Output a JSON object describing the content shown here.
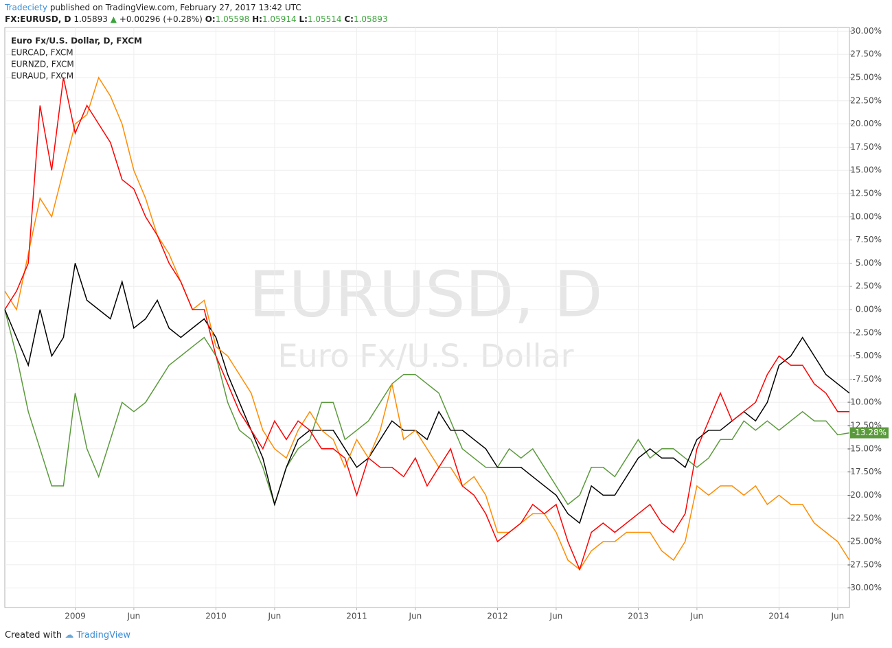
{
  "header": {
    "author": "Tradeciety",
    "published": "published on TradingView.com, February 27, 2017 13:42 UTC"
  },
  "ticker": {
    "symbol": "FX:EURUSD, D",
    "price": "1.05893",
    "change": "+0.00296 (+0.28%)",
    "ohlc": [
      {
        "key": "O:",
        "value": "1.05598"
      },
      {
        "key": "H:",
        "value": "1.05914"
      },
      {
        "key": "L:",
        "value": "1.05514"
      },
      {
        "key": "C:",
        "value": "1.05893"
      }
    ]
  },
  "footer": {
    "text": "Created with",
    "brand": "TradingView"
  },
  "chart_data": {
    "type": "line",
    "watermark": {
      "title": "EURUSD, D",
      "subtitle": "Euro Fx/U.S. Dollar"
    },
    "x": [
      "2008-07",
      "2008-08",
      "2008-09",
      "2008-10",
      "2008-11",
      "2008-12",
      "2009-01",
      "2009-02",
      "2009-03",
      "2009-04",
      "2009-05",
      "2009-06",
      "2009-07",
      "2009-08",
      "2009-09",
      "2009-10",
      "2009-11",
      "2009-12",
      "2010-01",
      "2010-02",
      "2010-03",
      "2010-04",
      "2010-05",
      "2010-06",
      "2010-07",
      "2010-08",
      "2010-09",
      "2010-10",
      "2010-11",
      "2010-12",
      "2011-01",
      "2011-02",
      "2011-03",
      "2011-04",
      "2011-05",
      "2011-06",
      "2011-07",
      "2011-08",
      "2011-09",
      "2011-10",
      "2011-11",
      "2011-12",
      "2012-01",
      "2012-02",
      "2012-03",
      "2012-04",
      "2012-05",
      "2012-06",
      "2012-07",
      "2012-08",
      "2012-09",
      "2012-10",
      "2012-11",
      "2012-12",
      "2013-01",
      "2013-02",
      "2013-03",
      "2013-04",
      "2013-05",
      "2013-06",
      "2013-07",
      "2013-08",
      "2013-09",
      "2013-10",
      "2013-11",
      "2013-12",
      "2014-01",
      "2014-02",
      "2014-03",
      "2014-04",
      "2014-05",
      "2014-06",
      "2014-07"
    ],
    "series": [
      {
        "name": "Euro Fx/U.S. Dollar, D, FXCM",
        "color": "#5b9a3c",
        "values": [
          0,
          -5,
          -11,
          -15,
          -19,
          -19,
          -9,
          -15,
          -18,
          -14,
          -10,
          -11,
          -10,
          -8,
          -6,
          -5,
          -4,
          -3,
          -5,
          -10,
          -13,
          -14,
          -17,
          -21,
          -17,
          -15,
          -14,
          -10,
          -10,
          -14,
          -13,
          -12,
          -10,
          -8,
          -7,
          -7,
          -8,
          -9,
          -12,
          -15,
          -16,
          -17,
          -17,
          -15,
          -16,
          -15,
          -17,
          -19,
          -21,
          -20,
          -17,
          -17,
          -18,
          -16,
          -14,
          -16,
          -15,
          -15,
          -16,
          -17,
          -16,
          -14,
          -14,
          -12,
          -13,
          -12,
          -13,
          -12,
          -11,
          -12,
          -12,
          -13.5,
          -13.28
        ]
      },
      {
        "name": "EURCAD, FXCM",
        "color": "#000000",
        "values": [
          0,
          -3,
          -6,
          0,
          -5,
          -3,
          5,
          1,
          0,
          -1,
          3,
          -2,
          -1,
          1,
          -2,
          -3,
          -2,
          -1,
          -3,
          -7,
          -10,
          -13,
          -16,
          -21,
          -17,
          -14,
          -13,
          -13,
          -13,
          -15,
          -17,
          -16,
          -14,
          -12,
          -13,
          -13,
          -14,
          -11,
          -13,
          -13,
          -14,
          -15,
          -17,
          -17,
          -17,
          -18,
          -19,
          -20,
          -22,
          -23,
          -19,
          -20,
          -20,
          -18,
          -16,
          -15,
          -16,
          -16,
          -17,
          -14,
          -13,
          -13,
          -12,
          -11,
          -12,
          -10,
          -6,
          -5,
          -3,
          -5,
          -7,
          -8,
          -9
        ]
      },
      {
        "name": "EURNZD, FXCM",
        "color": "#ff8c00",
        "values": [
          2,
          0,
          6,
          12,
          10,
          15,
          20,
          21,
          25,
          23,
          20,
          15,
          12,
          8,
          6,
          3,
          0,
          1,
          -4,
          -5,
          -7,
          -9,
          -13,
          -15,
          -16,
          -13,
          -11,
          -13,
          -14,
          -17,
          -14,
          -16,
          -13,
          -8,
          -14,
          -13,
          -15,
          -17,
          -17,
          -19,
          -18,
          -20,
          -24,
          -24,
          -23,
          -22,
          -22,
          -24,
          -27,
          -28,
          -26,
          -25,
          -25,
          -24,
          -24,
          -24,
          -26,
          -27,
          -25,
          -19,
          -20,
          -19,
          -19,
          -20,
          -19,
          -21,
          -20,
          -21,
          -21,
          -23,
          -24,
          -25,
          -27
        ]
      },
      {
        "name": "EURAUD, FXCM",
        "color": "#ff0000",
        "values": [
          0,
          2,
          5,
          22,
          15,
          25,
          19,
          22,
          20,
          18,
          14,
          13,
          10,
          8,
          5,
          3,
          0,
          0,
          -5,
          -8,
          -11,
          -13,
          -15,
          -12,
          -14,
          -12,
          -13,
          -15,
          -15,
          -16,
          -20,
          -16,
          -17,
          -17,
          -18,
          -16,
          -19,
          -17,
          -15,
          -19,
          -20,
          -22,
          -25,
          -24,
          -23,
          -21,
          -22,
          -21,
          -25,
          -28,
          -24,
          -23,
          -24,
          -23,
          -22,
          -21,
          -23,
          -24,
          -22,
          -15,
          -12,
          -9,
          -12,
          -11,
          -10,
          -7,
          -5,
          -6,
          -6,
          -8,
          -9,
          -11,
          -11
        ]
      }
    ],
    "xlim": [
      "2008-07",
      "2014-07"
    ],
    "xticks": [
      {
        "value": "2009-01",
        "label": "2009"
      },
      {
        "value": "2009-06",
        "label": "Jun"
      },
      {
        "value": "2010-01",
        "label": "2010"
      },
      {
        "value": "2010-06",
        "label": "Jun"
      },
      {
        "value": "2011-01",
        "label": "2011"
      },
      {
        "value": "2011-06",
        "label": "Jun"
      },
      {
        "value": "2012-01",
        "label": "2012"
      },
      {
        "value": "2012-06",
        "label": "Jun"
      },
      {
        "value": "2013-01",
        "label": "2013"
      },
      {
        "value": "2013-06",
        "label": "Jun"
      },
      {
        "value": "2014-01",
        "label": "2014"
      },
      {
        "value": "2014-06",
        "label": "Jun"
      }
    ],
    "ylim": [
      -32.1,
      30.4
    ],
    "yticks": [
      {
        "value": 30,
        "label": "30.00%"
      },
      {
        "value": 27.5,
        "label": "27.50%"
      },
      {
        "value": 25,
        "label": "25.00%"
      },
      {
        "value": 22.5,
        "label": "22.50%"
      },
      {
        "value": 20,
        "label": "20.00%"
      },
      {
        "value": 17.5,
        "label": "17.50%"
      },
      {
        "value": 15,
        "label": "15.00%"
      },
      {
        "value": 12.5,
        "label": "12.50%"
      },
      {
        "value": 10,
        "label": "10.00%"
      },
      {
        "value": 7.5,
        "label": "7.50%"
      },
      {
        "value": 5,
        "label": "5.00%"
      },
      {
        "value": 2.5,
        "label": "2.50%"
      },
      {
        "value": 0,
        "label": "0.00%"
      },
      {
        "value": -2.5,
        "label": "-2.50%"
      },
      {
        "value": -5,
        "label": "-5.00%"
      },
      {
        "value": -7.5,
        "label": "-7.50%"
      },
      {
        "value": -10,
        "label": "-10.00%"
      },
      {
        "value": -12.5,
        "label": "-12.50%"
      },
      {
        "value": -15,
        "label": "-15.00%"
      },
      {
        "value": -17.5,
        "label": "-17.50%"
      },
      {
        "value": -20,
        "label": "-20.00%"
      },
      {
        "value": -22.5,
        "label": "-22.50%"
      },
      {
        "value": -25,
        "label": "-25.00%"
      },
      {
        "value": -27.5,
        "label": "-27.50%"
      },
      {
        "value": -30,
        "label": "-30.00%"
      }
    ],
    "grid": true,
    "annotations": [
      {
        "text": "-13.28%",
        "y": -13.28,
        "color": "#5b9a3c"
      }
    ]
  }
}
